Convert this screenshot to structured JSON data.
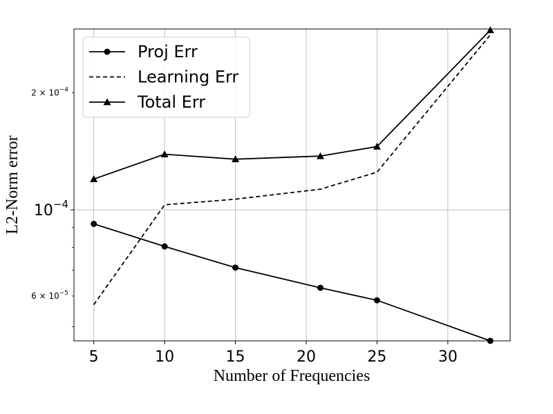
{
  "chart_data": {
    "type": "line",
    "xlabel": "Number of Frequencies",
    "ylabel": "L2-Norm error",
    "yscale": "log",
    "xlim": [
      3.6,
      34.4
    ],
    "ylim": [
      4.6e-05,
      0.000292
    ],
    "grid": true,
    "legend_position": "top-left",
    "x_ticks": [
      {
        "value": 5,
        "label": "5"
      },
      {
        "value": 10,
        "label": "10"
      },
      {
        "value": 15,
        "label": "15"
      },
      {
        "value": 20,
        "label": "20"
      },
      {
        "value": 25,
        "label": "25"
      },
      {
        "value": 30,
        "label": "30"
      }
    ],
    "y_ticks_major": [
      {
        "value": 0.0001,
        "label": "10^-4",
        "base": "10",
        "exp": "−4"
      }
    ],
    "y_ticks_minor_labeled": [
      {
        "value": 6e-05,
        "mant": "6 × 10",
        "exp": "−5"
      },
      {
        "value": 0.0002,
        "mant": "2 × 10",
        "exp": "−4"
      }
    ],
    "y_minor_tick_values": [
      5e-05,
      7e-05,
      8e-05,
      9e-05,
      0.0003
    ],
    "x": [
      5,
      10,
      15,
      21,
      25,
      33
    ],
    "series": [
      {
        "name": "Proj Err",
        "values": [
          9.2e-05,
          8.05e-05,
          7.1e-05,
          6.3e-05,
          5.85e-05,
          4.6e-05
        ],
        "line_style": "solid",
        "marker": "circle",
        "color": "#000000"
      },
      {
        "name": "Learning Err",
        "values": [
          5.7e-05,
          0.000103,
          0.0001065,
          0.000113,
          0.000125,
          0.000282
        ],
        "line_style": "dashed",
        "marker": "none",
        "color": "#000000"
      },
      {
        "name": "Total Err",
        "values": [
          0.00012,
          0.000139,
          0.000135,
          0.0001375,
          0.0001455,
          0.00029
        ],
        "line_style": "solid",
        "marker": "triangle",
        "color": "#000000"
      }
    ]
  }
}
